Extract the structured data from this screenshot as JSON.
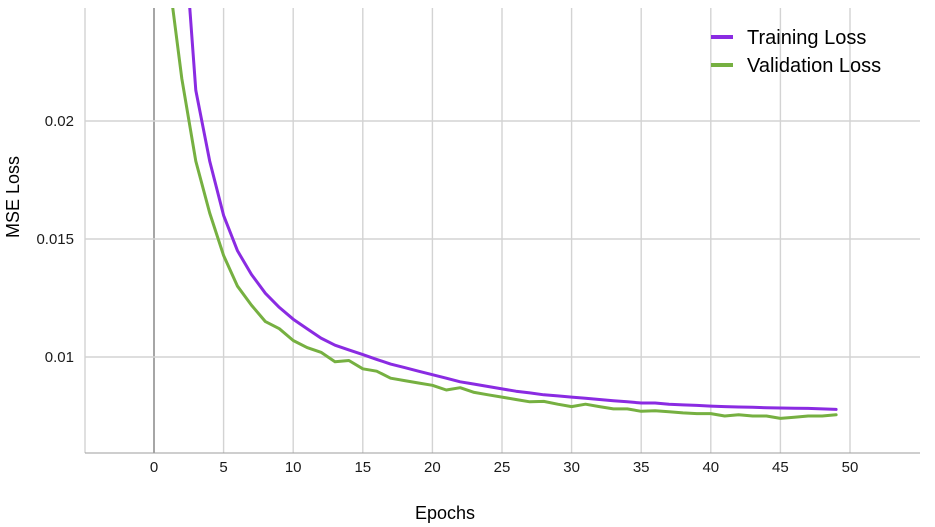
{
  "chart_data": {
    "type": "line",
    "title": "",
    "xlabel": "Epochs",
    "ylabel": "MSE Loss",
    "xlim": [
      -5,
      55
    ],
    "ylim": [
      0.006,
      0.024
    ],
    "x_ticks": [
      0,
      5,
      10,
      15,
      20,
      25,
      30,
      35,
      40,
      45,
      50
    ],
    "y_ticks": [
      {
        "value": 0.01,
        "label": "0.01"
      },
      {
        "value": 0.015,
        "label": "0.015"
      },
      {
        "value": 0.02,
        "label": "0.02"
      }
    ],
    "grid": true,
    "legend_position": "top-right",
    "colors": {
      "training": "#8a2be2",
      "validation": "#76b041",
      "grid": "#d3d3d3",
      "zero_line": "#a6a6a6"
    },
    "series": [
      {
        "name": "Training Loss",
        "x": [
          2,
          3,
          4,
          5,
          6,
          7,
          8,
          9,
          10,
          11,
          12,
          13,
          14,
          15,
          16,
          17,
          18,
          19,
          20,
          21,
          22,
          23,
          24,
          25,
          26,
          27,
          28,
          29,
          30,
          31,
          32,
          33,
          34,
          35,
          36,
          37,
          38,
          39,
          40,
          41,
          42,
          43,
          44,
          45,
          46,
          47,
          48,
          49
        ],
        "values": [
          0.0294,
          0.0213,
          0.0183,
          0.016,
          0.0145,
          0.0135,
          0.0127,
          0.0121,
          0.0116,
          0.0112,
          0.0108,
          0.0105,
          0.0103,
          0.0101,
          0.0099,
          0.0097,
          0.00955,
          0.0094,
          0.00925,
          0.0091,
          0.00895,
          0.00885,
          0.00875,
          0.00865,
          0.00855,
          0.00848,
          0.0084,
          0.00835,
          0.0083,
          0.00825,
          0.0082,
          0.00815,
          0.0081,
          0.00805,
          0.00805,
          0.008,
          0.00797,
          0.00795,
          0.00792,
          0.0079,
          0.00788,
          0.00787,
          0.00785,
          0.00784,
          0.00783,
          0.00782,
          0.0078,
          0.00778
        ]
      },
      {
        "name": "Validation Loss",
        "x": [
          1,
          2,
          3,
          4,
          5,
          6,
          7,
          8,
          9,
          10,
          11,
          12,
          13,
          14,
          15,
          16,
          17,
          18,
          19,
          20,
          21,
          22,
          23,
          24,
          25,
          26,
          27,
          28,
          29,
          30,
          31,
          32,
          33,
          34,
          35,
          36,
          37,
          38,
          39,
          40,
          41,
          42,
          43,
          44,
          45,
          46,
          47,
          48,
          49
        ],
        "values": [
          0.0264,
          0.0218,
          0.0183,
          0.0161,
          0.0143,
          0.013,
          0.0122,
          0.0115,
          0.0112,
          0.0107,
          0.0104,
          0.0102,
          0.0098,
          0.00985,
          0.0095,
          0.0094,
          0.0091,
          0.009,
          0.0089,
          0.0088,
          0.0086,
          0.0087,
          0.0085,
          0.0084,
          0.0083,
          0.0082,
          0.0081,
          0.00812,
          0.008,
          0.0079,
          0.008,
          0.0079,
          0.0078,
          0.0078,
          0.0077,
          0.00772,
          0.00768,
          0.00763,
          0.0076,
          0.0076,
          0.0075,
          0.00755,
          0.0075,
          0.0075,
          0.0074,
          0.00745,
          0.0075,
          0.0075,
          0.00755
        ]
      }
    ]
  }
}
